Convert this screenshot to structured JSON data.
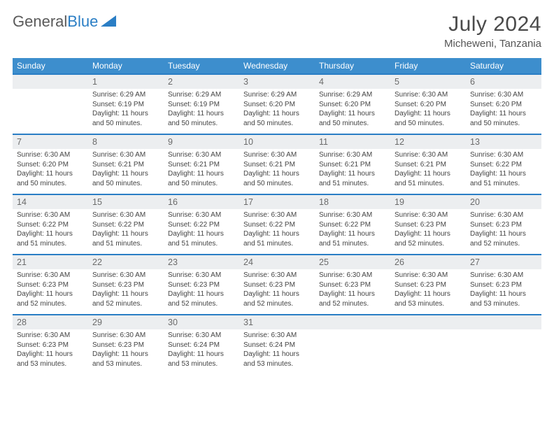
{
  "logo": {
    "text1": "General",
    "text2": "Blue"
  },
  "title": "July 2024",
  "location": "Micheweni, Tanzania",
  "colors": {
    "header_bg": "#3d8ecd",
    "header_border": "#2a7ec5",
    "daynum_bg": "#eceef0",
    "text_dark": "#444",
    "text_gray": "#6b6b6b"
  },
  "weekdays": [
    "Sunday",
    "Monday",
    "Tuesday",
    "Wednesday",
    "Thursday",
    "Friday",
    "Saturday"
  ],
  "weeks": [
    {
      "nums": [
        "",
        "1",
        "2",
        "3",
        "4",
        "5",
        "6"
      ],
      "cells": [
        null,
        {
          "sr": "6:29 AM",
          "ss": "6:19 PM",
          "dl": "11 hours and 50 minutes."
        },
        {
          "sr": "6:29 AM",
          "ss": "6:19 PM",
          "dl": "11 hours and 50 minutes."
        },
        {
          "sr": "6:29 AM",
          "ss": "6:20 PM",
          "dl": "11 hours and 50 minutes."
        },
        {
          "sr": "6:29 AM",
          "ss": "6:20 PM",
          "dl": "11 hours and 50 minutes."
        },
        {
          "sr": "6:30 AM",
          "ss": "6:20 PM",
          "dl": "11 hours and 50 minutes."
        },
        {
          "sr": "6:30 AM",
          "ss": "6:20 PM",
          "dl": "11 hours and 50 minutes."
        }
      ]
    },
    {
      "nums": [
        "7",
        "8",
        "9",
        "10",
        "11",
        "12",
        "13"
      ],
      "cells": [
        {
          "sr": "6:30 AM",
          "ss": "6:20 PM",
          "dl": "11 hours and 50 minutes."
        },
        {
          "sr": "6:30 AM",
          "ss": "6:21 PM",
          "dl": "11 hours and 50 minutes."
        },
        {
          "sr": "6:30 AM",
          "ss": "6:21 PM",
          "dl": "11 hours and 50 minutes."
        },
        {
          "sr": "6:30 AM",
          "ss": "6:21 PM",
          "dl": "11 hours and 50 minutes."
        },
        {
          "sr": "6:30 AM",
          "ss": "6:21 PM",
          "dl": "11 hours and 51 minutes."
        },
        {
          "sr": "6:30 AM",
          "ss": "6:21 PM",
          "dl": "11 hours and 51 minutes."
        },
        {
          "sr": "6:30 AM",
          "ss": "6:22 PM",
          "dl": "11 hours and 51 minutes."
        }
      ]
    },
    {
      "nums": [
        "14",
        "15",
        "16",
        "17",
        "18",
        "19",
        "20"
      ],
      "cells": [
        {
          "sr": "6:30 AM",
          "ss": "6:22 PM",
          "dl": "11 hours and 51 minutes."
        },
        {
          "sr": "6:30 AM",
          "ss": "6:22 PM",
          "dl": "11 hours and 51 minutes."
        },
        {
          "sr": "6:30 AM",
          "ss": "6:22 PM",
          "dl": "11 hours and 51 minutes."
        },
        {
          "sr": "6:30 AM",
          "ss": "6:22 PM",
          "dl": "11 hours and 51 minutes."
        },
        {
          "sr": "6:30 AM",
          "ss": "6:22 PM",
          "dl": "11 hours and 51 minutes."
        },
        {
          "sr": "6:30 AM",
          "ss": "6:23 PM",
          "dl": "11 hours and 52 minutes."
        },
        {
          "sr": "6:30 AM",
          "ss": "6:23 PM",
          "dl": "11 hours and 52 minutes."
        }
      ]
    },
    {
      "nums": [
        "21",
        "22",
        "23",
        "24",
        "25",
        "26",
        "27"
      ],
      "cells": [
        {
          "sr": "6:30 AM",
          "ss": "6:23 PM",
          "dl": "11 hours and 52 minutes."
        },
        {
          "sr": "6:30 AM",
          "ss": "6:23 PM",
          "dl": "11 hours and 52 minutes."
        },
        {
          "sr": "6:30 AM",
          "ss": "6:23 PM",
          "dl": "11 hours and 52 minutes."
        },
        {
          "sr": "6:30 AM",
          "ss": "6:23 PM",
          "dl": "11 hours and 52 minutes."
        },
        {
          "sr": "6:30 AM",
          "ss": "6:23 PM",
          "dl": "11 hours and 52 minutes."
        },
        {
          "sr": "6:30 AM",
          "ss": "6:23 PM",
          "dl": "11 hours and 53 minutes."
        },
        {
          "sr": "6:30 AM",
          "ss": "6:23 PM",
          "dl": "11 hours and 53 minutes."
        }
      ]
    },
    {
      "nums": [
        "28",
        "29",
        "30",
        "31",
        "",
        "",
        ""
      ],
      "cells": [
        {
          "sr": "6:30 AM",
          "ss": "6:23 PM",
          "dl": "11 hours and 53 minutes."
        },
        {
          "sr": "6:30 AM",
          "ss": "6:23 PM",
          "dl": "11 hours and 53 minutes."
        },
        {
          "sr": "6:30 AM",
          "ss": "6:24 PM",
          "dl": "11 hours and 53 minutes."
        },
        {
          "sr": "6:30 AM",
          "ss": "6:24 PM",
          "dl": "11 hours and 53 minutes."
        },
        null,
        null,
        null
      ]
    }
  ],
  "labels": {
    "sunrise": "Sunrise:",
    "sunset": "Sunset:",
    "daylight": "Daylight:"
  }
}
